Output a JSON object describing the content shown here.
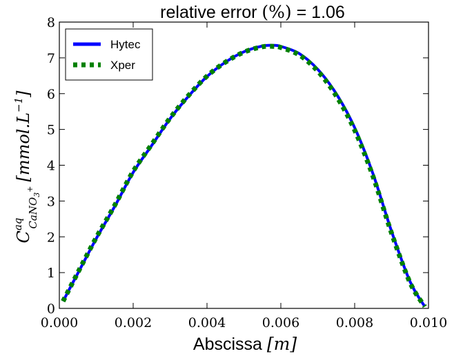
{
  "chart_data": {
    "type": "line",
    "title": "relative error (%) = 1.06",
    "title_parts": {
      "prefix": "relative error ",
      "paren": "(%)",
      "suffix": " = 1.06"
    },
    "xlabel": "Abscissa [m]",
    "xlabel_parts": {
      "text": "Abscissa ",
      "unit": "[m]"
    },
    "ylabel": "C^{aq}_{CaNO3+} [mmol.L^-1]",
    "ylabel_parts": {
      "symbol": "C",
      "superscript": "aq",
      "subscript": "CaNO",
      "subscript_sub": "3",
      "subscript_sup": "+",
      "unit": "[mmol.L",
      "unit_sup": "−1",
      "unit_close": "]"
    },
    "xlim": [
      0.0,
      0.01
    ],
    "ylim": [
      0,
      8
    ],
    "x_ticks": [
      "0.000",
      "0.002",
      "0.004",
      "0.006",
      "0.008",
      "0.010"
    ],
    "y_ticks": [
      "0",
      "1",
      "2",
      "3",
      "4",
      "5",
      "6",
      "7",
      "8"
    ],
    "grid": false,
    "legend_position": "top-left",
    "series": [
      {
        "name": "Hytec",
        "color": "#0000ff",
        "style": "solid",
        "x": [
          0.0001,
          0.0005,
          0.001,
          0.0015,
          0.002,
          0.0025,
          0.003,
          0.0035,
          0.004,
          0.0045,
          0.005,
          0.0055,
          0.0058,
          0.006,
          0.0065,
          0.007,
          0.0075,
          0.008,
          0.0085,
          0.009,
          0.0095,
          0.0099
        ],
        "y": [
          0.2,
          0.98,
          1.95,
          2.85,
          3.8,
          4.55,
          5.3,
          5.93,
          6.48,
          6.88,
          7.17,
          7.33,
          7.35,
          7.32,
          7.12,
          6.68,
          6.0,
          5.05,
          3.75,
          2.15,
          0.75,
          0.05
        ]
      },
      {
        "name": "Xper",
        "color": "#008000",
        "style": "dotted",
        "x": [
          0.0001,
          0.0005,
          0.001,
          0.0015,
          0.002,
          0.0025,
          0.003,
          0.0035,
          0.004,
          0.0045,
          0.005,
          0.0055,
          0.0058,
          0.006,
          0.0065,
          0.007,
          0.0075,
          0.008,
          0.0085,
          0.009,
          0.0095,
          0.0099
        ],
        "y": [
          0.2,
          1.0,
          1.98,
          2.88,
          3.83,
          4.58,
          5.32,
          5.95,
          6.49,
          6.88,
          7.16,
          7.31,
          7.32,
          7.29,
          7.08,
          6.63,
          5.94,
          4.98,
          3.68,
          2.1,
          0.72,
          0.05
        ]
      }
    ]
  }
}
